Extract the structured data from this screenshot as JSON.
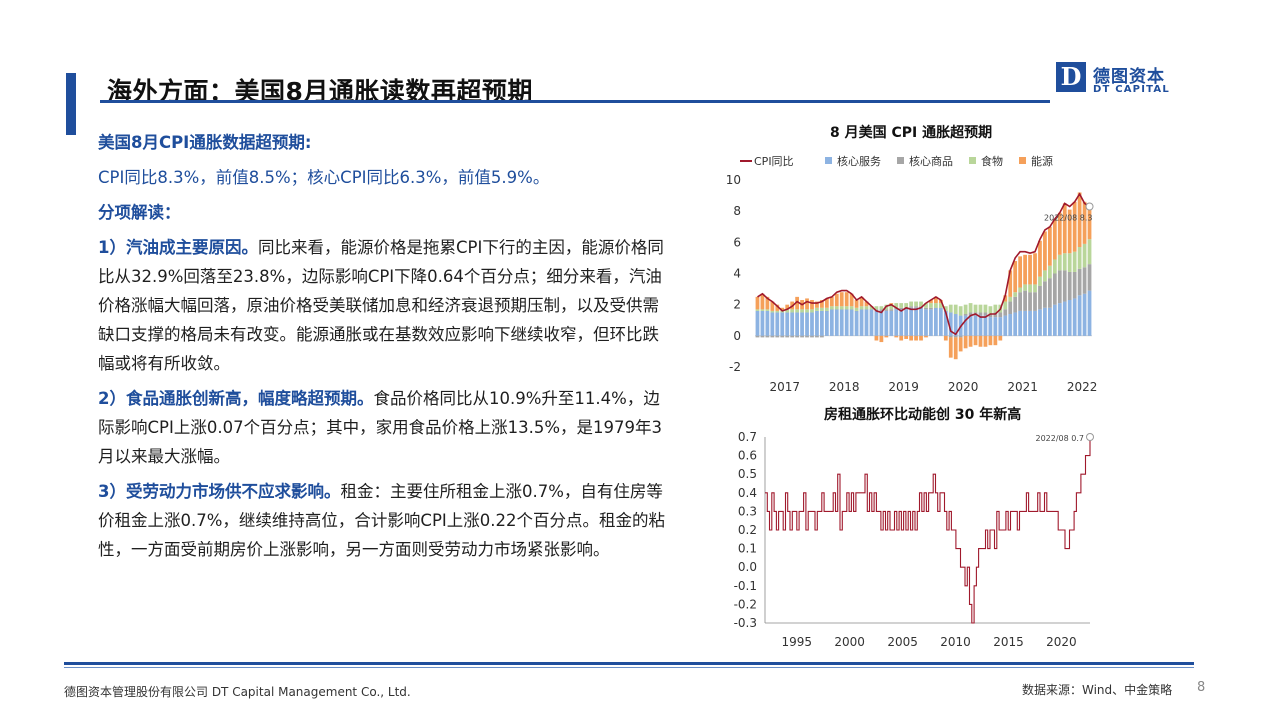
{
  "header": {
    "title": "海外方面：美国8月通胀读数再超预期",
    "logo_letter": "D",
    "logo_cn": "德图资本",
    "logo_en": "DT CAPITAL"
  },
  "body": {
    "heading1": "美国8月CPI通胀数据超预期:",
    "line1": "CPI同比8.3%，前值8.5%；核心CPI同比6.3%，前值5.9%。",
    "heading2": "分项解读：",
    "p1_lead": "1）汽油成主要原因。",
    "p1_text": "同比来看，能源价格是拖累CPI下行的主因，能源价格同比从32.9%回落至23.8%，边际影响CPI下降0.64个百分点；细分来看，汽油价格涨幅大幅回落，原油价格受美联储加息和经济衰退预期压制，以及受供需缺口支撑的格局未有改变。能源通胀或在基数效应影响下继续收窄，但环比跌幅或将有所收敛。",
    "p2_lead": "2）食品通胀创新高，幅度略超预期。",
    "p2_text": "食品价格同比从10.9%升至11.4%，边际影响CPI上涨0.07个百分点；其中，家用食品价格上涨13.5%，是1979年3月以来最大涨幅。",
    "p3_lead": "3）受劳动力市场供不应求影响。",
    "p3_text": "租金：主要住所租金上涨0.7%，自有住房等价租金上涨0.7%，继续维持高位，合计影响CPI上涨0.22个百分点。租金的粘性，一方面受前期房价上涨影响，另一方面则受劳动力市场紧张影响。"
  },
  "chart_data": [
    {
      "type": "bar",
      "title": "8 月美国 CPI 通胀超预期",
      "legend": [
        "CPI同比",
        "核心服务",
        "核心商品",
        "食物",
        "能源"
      ],
      "colors": {
        "CPI同比": "#a0192c",
        "核心服务": "#8db3e2",
        "核心商品": "#a6a6a6",
        "食物": "#b9d69a",
        "能源": "#f5a05a"
      },
      "x_ticks": [
        "2017",
        "2018",
        "2019",
        "2020",
        "2021",
        "2022"
      ],
      "y_ticks": [
        "-2",
        "0",
        "2",
        "4",
        "6",
        "8",
        "10"
      ],
      "ylim": [
        -2,
        10
      ],
      "annotation": "2022/08  8.3",
      "series": [
        {
          "name": "CPI同比",
          "values": [
            2.5,
            2.7,
            2.4,
            2.2,
            1.9,
            1.6,
            1.7,
            1.9,
            2.2,
            2.0,
            2.2,
            2.1,
            2.1,
            2.2,
            2.4,
            2.5,
            2.8,
            2.9,
            2.9,
            2.7,
            2.3,
            2.5,
            2.2,
            1.9,
            1.6,
            1.5,
            1.9,
            2.0,
            1.8,
            1.6,
            1.8,
            1.7,
            1.7,
            1.8,
            2.1,
            2.3,
            2.5,
            2.3,
            1.5,
            0.3,
            0.1,
            0.6,
            1.0,
            1.3,
            1.4,
            1.2,
            1.2,
            1.4,
            1.4,
            1.7,
            2.6,
            4.2,
            5.0,
            5.4,
            5.4,
            5.3,
            5.4,
            6.2,
            6.8,
            7.0,
            7.5,
            7.9,
            8.5,
            8.3,
            8.6,
            9.1,
            8.5,
            8.3
          ]
        },
        {
          "name": "核心服务",
          "values": [
            1.6,
            1.6,
            1.6,
            1.5,
            1.5,
            1.5,
            1.5,
            1.5,
            1.5,
            1.5,
            1.5,
            1.5,
            1.6,
            1.6,
            1.6,
            1.7,
            1.7,
            1.7,
            1.7,
            1.7,
            1.6,
            1.7,
            1.7,
            1.7,
            1.6,
            1.6,
            1.6,
            1.6,
            1.7,
            1.7,
            1.7,
            1.8,
            1.8,
            1.8,
            1.7,
            1.7,
            1.8,
            1.8,
            1.6,
            1.5,
            1.4,
            1.3,
            1.3,
            1.3,
            1.3,
            1.3,
            1.3,
            1.2,
            1.2,
            1.2,
            1.3,
            1.4,
            1.5,
            1.6,
            1.6,
            1.6,
            1.6,
            1.7,
            1.8,
            1.8,
            2.0,
            2.1,
            2.2,
            2.3,
            2.4,
            2.6,
            2.7,
            2.9
          ]
        },
        {
          "name": "核心商品",
          "values": [
            -0.1,
            -0.1,
            -0.1,
            -0.1,
            -0.1,
            -0.1,
            -0.1,
            -0.1,
            -0.1,
            -0.1,
            -0.1,
            -0.1,
            -0.1,
            -0.1,
            0.0,
            0.0,
            0.0,
            0.0,
            0.0,
            0.0,
            0.0,
            0.0,
            0.0,
            0.0,
            0.1,
            0.1,
            0.1,
            0.1,
            0.1,
            0.1,
            0.1,
            0.1,
            0.1,
            0.1,
            0.1,
            0.1,
            0.0,
            0.0,
            0.0,
            -0.1,
            -0.1,
            -0.1,
            0.1,
            0.2,
            0.2,
            0.2,
            0.2,
            0.2,
            0.3,
            0.3,
            0.4,
            0.8,
            1.0,
            1.2,
            1.3,
            1.2,
            1.2,
            1.5,
            1.7,
            1.9,
            2.0,
            2.1,
            2.0,
            1.8,
            1.7,
            1.7,
            1.7,
            1.7
          ]
        },
        {
          "name": "食物",
          "values": [
            0.1,
            0.1,
            0.1,
            0.1,
            0.1,
            0.1,
            0.2,
            0.2,
            0.2,
            0.2,
            0.2,
            0.2,
            0.2,
            0.2,
            0.2,
            0.2,
            0.2,
            0.2,
            0.2,
            0.2,
            0.2,
            0.2,
            0.2,
            0.2,
            0.2,
            0.2,
            0.3,
            0.3,
            0.3,
            0.3,
            0.3,
            0.3,
            0.3,
            0.3,
            0.3,
            0.3,
            0.3,
            0.3,
            0.3,
            0.5,
            0.6,
            0.6,
            0.6,
            0.6,
            0.5,
            0.5,
            0.5,
            0.5,
            0.5,
            0.5,
            0.5,
            0.3,
            0.3,
            0.3,
            0.4,
            0.5,
            0.5,
            0.6,
            0.7,
            0.8,
            0.9,
            1.0,
            1.1,
            1.2,
            1.3,
            1.4,
            1.5,
            1.6
          ]
        },
        {
          "name": "能源",
          "values": [
            0.8,
            1.0,
            0.8,
            0.6,
            0.4,
            0.2,
            0.3,
            0.5,
            0.8,
            0.6,
            0.7,
            0.6,
            0.4,
            0.5,
            0.6,
            0.6,
            0.8,
            0.9,
            0.9,
            0.8,
            0.5,
            0.6,
            0.3,
            0.0,
            -0.3,
            -0.4,
            -0.1,
            0.1,
            -0.1,
            -0.3,
            -0.2,
            -0.3,
            -0.3,
            -0.3,
            -0.1,
            0.2,
            0.4,
            0.2,
            -0.3,
            -1.3,
            -1.4,
            -0.9,
            -0.8,
            -0.7,
            -0.6,
            -0.7,
            -0.7,
            -0.6,
            -0.6,
            -0.3,
            0.4,
            1.7,
            2.0,
            2.0,
            1.9,
            1.9,
            2.0,
            2.3,
            2.5,
            2.5,
            2.6,
            2.7,
            3.2,
            2.8,
            3.2,
            3.5,
            2.7,
            2.2
          ]
        }
      ]
    },
    {
      "type": "line",
      "title": "房租通胀环比动能创 30 年新高",
      "x_ticks": [
        "1995",
        "2000",
        "2005",
        "2010",
        "2015",
        "2020"
      ],
      "y_ticks": [
        "-0.3",
        "-0.2",
        "-0.1",
        "0.0",
        "0.1",
        "0.2",
        "0.3",
        "0.4",
        "0.5",
        "0.6",
        "0.7"
      ],
      "ylim": [
        -0.3,
        0.7
      ],
      "annotation": "2022/08  0.7",
      "series": [
        {
          "name": "房租环比",
          "values": [
            0.4,
            0.3,
            0.2,
            0.4,
            0.3,
            0.2,
            0.3,
            0.3,
            0.2,
            0.4,
            0.3,
            0.2,
            0.3,
            0.3,
            0.2,
            0.3,
            0.3,
            0.4,
            0.2,
            0.3,
            0.3,
            0.3,
            0.2,
            0.3,
            0.3,
            0.4,
            0.3,
            0.3,
            0.3,
            0.3,
            0.4,
            0.3,
            0.5,
            0.2,
            0.3,
            0.3,
            0.4,
            0.3,
            0.4,
            0.3,
            0.4,
            0.4,
            0.4,
            0.4,
            0.5,
            0.3,
            0.4,
            0.3,
            0.4,
            0.3,
            0.3,
            0.2,
            0.3,
            0.2,
            0.3,
            0.2,
            0.2,
            0.3,
            0.2,
            0.3,
            0.2,
            0.3,
            0.2,
            0.3,
            0.2,
            0.3,
            0.2,
            0.3,
            0.4,
            0.3,
            0.4,
            0.3,
            0.4,
            0.4,
            0.5,
            0.4,
            0.3,
            0.4,
            0.4,
            0.3,
            0.2,
            0.3,
            0.2,
            0.2,
            0.1,
            0.1,
            0.0,
            0.0,
            -0.1,
            0.0,
            -0.2,
            -0.3,
            -0.1,
            0.0,
            0.1,
            0.1,
            0.1,
            0.2,
            0.1,
            0.2,
            0.2,
            0.1,
            0.3,
            0.2,
            0.2,
            0.2,
            0.3,
            0.2,
            0.3,
            0.3,
            0.3,
            0.2,
            0.3,
            0.3,
            0.3,
            0.4,
            0.3,
            0.3,
            0.3,
            0.3,
            0.4,
            0.3,
            0.3,
            0.4,
            0.3,
            0.3,
            0.3,
            0.3,
            0.3,
            0.2,
            0.2,
            0.2,
            0.1,
            0.1,
            0.2,
            0.2,
            0.3,
            0.4,
            0.4,
            0.5,
            0.5,
            0.6,
            0.6,
            0.7
          ]
        }
      ]
    }
  ],
  "footer": {
    "company": "德图资本管理股份有限公司  DT Capital Management  Co., Ltd.",
    "source": "数据来源：Wind、中金策略",
    "page": "8"
  }
}
